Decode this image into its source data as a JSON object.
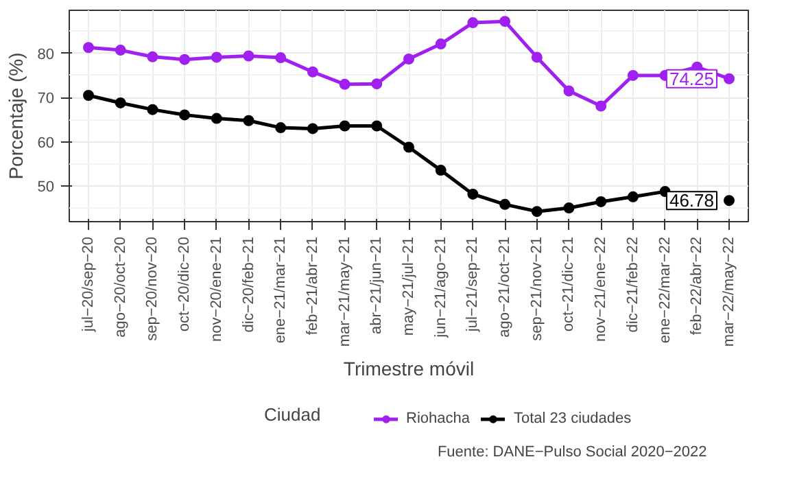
{
  "chart_data": {
    "type": "line",
    "xlabel": "Trimestre móvil",
    "ylabel": "Porcentaje (%)",
    "legend_title": "Ciudad",
    "categories": [
      "jul−20/sep−20",
      "ago−20/oct−20",
      "sep−20/nov−20",
      "oct−20/dic−20",
      "nov−20/ene−21",
      "dic−20/feb−21",
      "ene−21/mar−21",
      "feb−21/abr−21",
      "mar−21/may−21",
      "abr−21/jun−21",
      "may−21/jul−21",
      "jun−21/ago−21",
      "jul−21/sep−21",
      "ago−21/oct−21",
      "sep−21/nov−21",
      "oct−21/dic−21",
      "nov−21/ene−22",
      "dic−21/feb−22",
      "ene−22/mar−22",
      "feb−22/abr−22",
      "mar−22/may−22"
    ],
    "series": [
      {
        "name": "Riohacha",
        "color": "#a020f0",
        "values": [
          81.3,
          80.7,
          79.2,
          78.6,
          79.1,
          79.4,
          79.0,
          75.8,
          73.0,
          73.1,
          78.7,
          82.1,
          86.9,
          87.2,
          79.1,
          71.5,
          68.1,
          75.0,
          75.0,
          76.9,
          74.25
        ],
        "value_labels": [
          null,
          null,
          null,
          null,
          null,
          null,
          null,
          null,
          null,
          null,
          null,
          null,
          null,
          null,
          null,
          null,
          null,
          null,
          null,
          null,
          "74.25"
        ]
      },
      {
        "name": "Total 23 ciudades",
        "color": "#000000",
        "values": [
          70.5,
          68.8,
          67.3,
          66.1,
          65.3,
          64.8,
          63.2,
          63.0,
          63.6,
          63.6,
          58.8,
          53.6,
          48.2,
          45.9,
          44.3,
          45.1,
          46.5,
          47.6,
          48.8,
          null,
          46.78
        ],
        "value_labels": [
          null,
          null,
          null,
          null,
          null,
          null,
          null,
          null,
          null,
          null,
          null,
          null,
          null,
          null,
          null,
          null,
          null,
          null,
          null,
          null,
          "46.78"
        ]
      }
    ],
    "ylim": [
      42,
      89.7
    ],
    "yticks": [
      50,
      60,
      70,
      80
    ],
    "grid": true,
    "legend": "bottom",
    "marker": "circle",
    "line_style": "solid",
    "annotations": [
      "Fuente: DANE−Pulso Social 2020−2022"
    ]
  }
}
